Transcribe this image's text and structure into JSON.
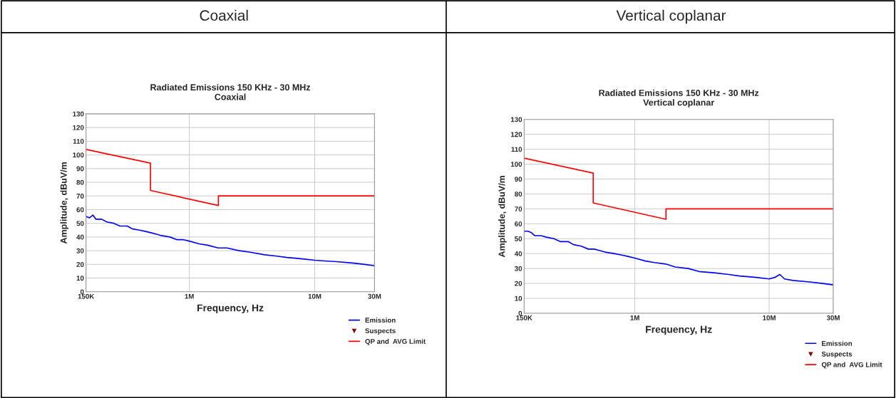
{
  "chart_data": [
    {
      "type": "line",
      "title": "Radiated Emissions 150 KHz - 30 MHz",
      "subtitle": "Coaxial",
      "annotations": [
        "Coaxial"
      ],
      "xlabel": "Frequency, Hz",
      "ylabel": "Amplitude, dBuV/m",
      "log": "x",
      "xlim": [
        150000,
        30000000
      ],
      "xticks": [
        {
          "value": 150000,
          "label": "150K"
        },
        {
          "value": 1000000,
          "label": "1M"
        },
        {
          "value": 10000000,
          "label": "10M"
        },
        {
          "value": 30000000,
          "label": "30M"
        }
      ],
      "ylim": [
        0,
        130
      ],
      "yticks": [
        0,
        10,
        20,
        30,
        40,
        50,
        60,
        70,
        80,
        90,
        100,
        110,
        120,
        130
      ],
      "grid": true,
      "legend": "bottom right",
      "series": [
        {
          "name": "Emission",
          "color": "#0000ff",
          "x": [
            150000,
            160000,
            170000,
            180000,
            200000,
            220000,
            250000,
            280000,
            320000,
            350000,
            400000,
            450000,
            500000,
            550000,
            600000,
            700000,
            800000,
            900000,
            1000000,
            1200000,
            1400000,
            1700000,
            2000000,
            2500000,
            3000000,
            4000000,
            5000000,
            6000000,
            7000000,
            8000000,
            10000000,
            12000000,
            15000000,
            20000000,
            25000000,
            30000000
          ],
          "values": [
            55,
            54,
            56,
            53,
            53,
            51,
            50,
            48,
            48,
            46,
            45,
            44,
            43,
            42,
            41,
            40,
            38,
            38,
            37,
            35,
            34,
            32,
            32,
            30,
            29,
            27,
            26,
            25,
            24.5,
            24,
            23,
            22.5,
            22,
            21,
            20,
            19
          ]
        },
        {
          "name": "Suspects",
          "type": "scatter",
          "marker": "triangle",
          "color": "#8b0000"
        },
        {
          "name": "QP and  AVG Limit",
          "color": "#ff0000",
          "x": [
            150000,
            490000,
            490000,
            1705000,
            1705000,
            30000000
          ],
          "values": [
            104,
            94,
            74,
            63,
            70,
            70
          ]
        }
      ]
    },
    {
      "type": "line",
      "title": "Radiated Emissions 150 KHz - 30 MHz",
      "subtitle": "Vertical coplanar",
      "annotations": [
        "Vertical coplanar"
      ],
      "xlabel": "Frequency, Hz",
      "ylabel": "Amplitude, dBuV/m",
      "log": "x",
      "xlim": [
        150000,
        30000000
      ],
      "xticks": [
        {
          "value": 150000,
          "label": "150K"
        },
        {
          "value": 1000000,
          "label": "1M"
        },
        {
          "value": 10000000,
          "label": "10M"
        },
        {
          "value": 30000000,
          "label": "30M"
        }
      ],
      "ylim": [
        0,
        130
      ],
      "yticks": [
        0,
        10,
        20,
        30,
        40,
        50,
        60,
        70,
        80,
        90,
        100,
        110,
        120,
        130
      ],
      "grid": true,
      "legend": "bottom right",
      "series": [
        {
          "name": "Emission",
          "color": "#0000ff",
          "x": [
            150000,
            160000,
            170000,
            180000,
            200000,
            220000,
            250000,
            280000,
            320000,
            350000,
            400000,
            450000,
            500000,
            550000,
            600000,
            700000,
            800000,
            900000,
            1000000,
            1200000,
            1400000,
            1700000,
            2000000,
            2500000,
            3000000,
            4000000,
            5000000,
            6000000,
            7000000,
            8000000,
            10000000,
            11000000,
            12000000,
            13000000,
            15000000,
            20000000,
            25000000,
            30000000
          ],
          "values": [
            55,
            55,
            54,
            52,
            52,
            51,
            50,
            48,
            48,
            46,
            45,
            43,
            43,
            42,
            41,
            40,
            39,
            38,
            37,
            35,
            34,
            33,
            31,
            30,
            28,
            27,
            26,
            25,
            24.5,
            24,
            23,
            24,
            26,
            23,
            22,
            21,
            20,
            19
          ]
        },
        {
          "name": "Suspects",
          "type": "scatter",
          "marker": "triangle",
          "color": "#8b0000"
        },
        {
          "name": "QP and  AVG Limit",
          "color": "#ff0000",
          "x": [
            150000,
            490000,
            490000,
            1705000,
            1705000,
            30000000
          ],
          "values": [
            104,
            94,
            74,
            63,
            70,
            70
          ]
        }
      ]
    }
  ]
}
